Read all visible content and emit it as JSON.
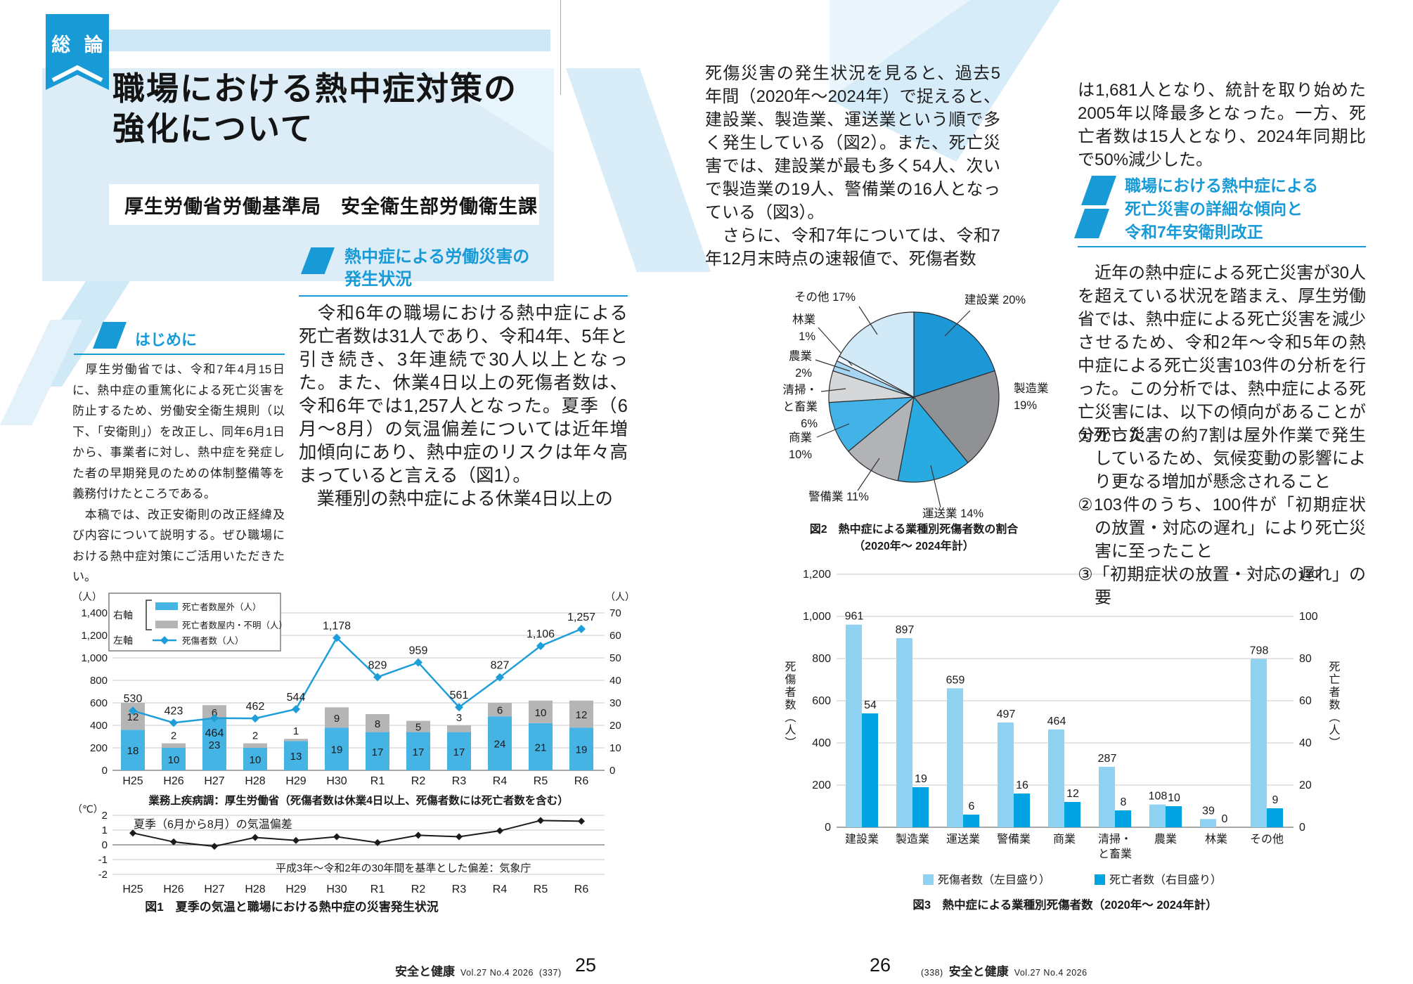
{
  "accent_color": "#189ad7",
  "icons": {
    "section_marker": "blue-slash-parallelogram-icon",
    "ribbon": "bookmark-ribbon"
  },
  "ribbon": {
    "label": "総 論"
  },
  "header": {
    "title_lines": [
      "職場における熱中症対策の",
      "強化について"
    ],
    "subtitle": "厚生労働省労働基準局　安全衛生部労働衛生課"
  },
  "left_col1": {
    "heading": "はじめに",
    "paragraphs": [
      "　厚生労働省では、令和7年4月15日に、熱中症の重篤化による死亡災害を防止するため、労働安全衛生規則（以下、「安衛則」）を改正し、同年6月1日から、事業者に対し、熱中症を発症した者の早期発見のための体制整備等を義務付けたところである。",
      "　本稿では、改正安衛則の改正経緯及び内容について説明する。ぜひ職場における熱中症対策にご活用いただきたい。"
    ]
  },
  "left_col2": {
    "heading_lines": [
      "熱中症による労働災害の",
      "発生状況"
    ],
    "paragraphs": [
      "　令和6年の職場における熱中症による死亡者数は31人であり、令和4年、5年と引き続き、3年連続で30人以上となった。また、休業4日以上の死傷者数は、令和6年では1,257人となった。夏季（6月〜8月）の気温偏差については近年増加傾向にあり、熱中症のリスクは年々高まっていると言える（図1）。",
      "　業種別の熱中症による休業4日以上の"
    ]
  },
  "right_col1": {
    "paragraphs": [
      "死傷災害の発生状況を見ると、過去5年間（2020年〜2024年）で捉えると、建設業、製造業、運送業という順で多く発生している（図2）。また、死亡災害では、建設業が最も多く54人、次いで製造業の19人、警備業の16人となっている（図3）。",
      "　さらに、令和7年については、令和7年12月末時点の速報値で、死傷者数"
    ]
  },
  "right_col2": {
    "lead_paragraphs": [
      "は1,681人となり、統計を取り始めた2005年以降最多となった。一方、死亡者数は15人となり、2024年同期比で50%減少した。"
    ],
    "heading_lines": [
      "職場における熱中症による",
      "死亡災害の詳細な傾向と",
      "令和7年安衛則改正"
    ],
    "paragraphs": [
      "　近年の熱中症による死亡災害が30人を超えている状況を踏まえ、厚生労働省では、熱中症による死亡災害を減少させるため、令和2年〜令和5年の熱中症による死亡災害103件の分析を行った。この分析では、熱中症による死亡災害には、以下の傾向があることが分かった。"
    ],
    "list_items": [
      "①死亡災害の約7割は屋外作業で発生しているため、気候変動の影響により更なる増加が懸念されること",
      "②103件のうち、100件が「初期症状の放置・対応の遅れ」により死亡災害に至ったこと",
      "③「初期症状の放置・対応の遅れ」の要"
    ]
  },
  "footer_left": {
    "journal": "安全と健康",
    "issue": "Vol.27 No.4 2026",
    "series_page": "(337)",
    "page_number": "25"
  },
  "footer_right": {
    "page_number": "26",
    "series_page": "(338)",
    "journal": "安全と健康",
    "issue": "Vol.27 No.4 2026"
  },
  "chart_data": [
    {
      "id": "figure1",
      "type": "bar+line",
      "categories": [
        "H25",
        "H26",
        "H27",
        "H28",
        "H29",
        "H30",
        "R1",
        "R2",
        "R3",
        "R4",
        "R5",
        "R6"
      ],
      "series": [
        {
          "name": "死亡者数屋外（人）",
          "type": "bar",
          "axis": "right",
          "color": "#45b4e4",
          "values": [
            18,
            10,
            23,
            10,
            13,
            19,
            17,
            17,
            17,
            24,
            21,
            19
          ]
        },
        {
          "name": "死亡者数屋内・不明（人）",
          "type": "bar",
          "axis": "right",
          "color": "#b5b5b5",
          "values": [
            12,
            2,
            6,
            2,
            1,
            9,
            8,
            5,
            3,
            6,
            10,
            12
          ]
        },
        {
          "name": "死傷者数（人）",
          "type": "line",
          "axis": "left",
          "color": "#1e9ed9",
          "values": [
            530,
            423,
            464,
            462,
            544,
            1178,
            829,
            959,
            561,
            827,
            1106,
            1257
          ]
        }
      ],
      "legend": {
        "right_axis_label": "右軸",
        "left_axis_label": "左軸"
      },
      "left_axis": {
        "unit": "（人）",
        "min": 0,
        "max": 1400,
        "step": 200
      },
      "right_axis": {
        "unit": "（人）",
        "min": 0,
        "max": 70,
        "step": 10
      },
      "source_note": "業務上疾病調：厚生労働省（死傷者数は休業4日以上、死傷者数には死亡者数を含む）",
      "temperature": {
        "unit": "（℃）",
        "min": -2,
        "max": 2,
        "step": 1,
        "label": "夏季（6月から8月）の気温偏差",
        "note": "平成3年〜令和2年の30年間を基準とした偏差：気象庁",
        "color": "#1a1a1a",
        "values": [
          0.8,
          0.2,
          -0.1,
          0.5,
          0.3,
          0.55,
          0.15,
          0.65,
          0.55,
          0.95,
          1.65,
          1.6
        ]
      },
      "caption": "図1　夏季の気温と職場における熱中症の災害発生状況"
    },
    {
      "id": "figure2",
      "type": "pie",
      "slices": [
        {
          "label": "建設業",
          "pct": 20,
          "color": "#1e97d7"
        },
        {
          "label": "製造業",
          "pct": 19,
          "color": "#8f9194"
        },
        {
          "label": "運送業",
          "pct": 14,
          "color": "#29aae1"
        },
        {
          "label": "警備業",
          "pct": 11,
          "color": "#b1b3b6"
        },
        {
          "label": "商業",
          "pct": 10,
          "color": "#43b2e6"
        },
        {
          "label": "清掃・と畜業",
          "pct": 6,
          "color": "#d5d7d9"
        },
        {
          "label": "農業",
          "pct": 2,
          "color": "#a5d5f2"
        },
        {
          "label": "林業",
          "pct": 1,
          "color": "#eef7fd"
        },
        {
          "label": "その他",
          "pct": 17,
          "color": "#d2e9f8"
        }
      ],
      "caption_lines": [
        "図2　熱中症による業種別死傷者数の割合",
        "（2020年〜 2024年計）"
      ]
    },
    {
      "id": "figure3",
      "type": "bar",
      "categories": [
        [
          "建設業"
        ],
        [
          "製造業"
        ],
        [
          "運送業"
        ],
        [
          "警備業"
        ],
        [
          "商業"
        ],
        [
          "清掃・",
          "と畜業"
        ],
        [
          "農業"
        ],
        [
          "林業"
        ],
        [
          "その他"
        ]
      ],
      "series": [
        {
          "name": "死傷者数（左目盛り）",
          "axis": "left",
          "color": "#8fd2f2",
          "values": [
            961,
            897,
            659,
            497,
            464,
            287,
            108,
            39,
            798
          ]
        },
        {
          "name": "死亡者数（右目盛り）",
          "axis": "right",
          "color": "#00a3e2",
          "values": [
            54,
            19,
            6,
            16,
            12,
            8,
            10,
            0,
            9
          ]
        }
      ],
      "left_axis": {
        "label": "死傷者数（人）",
        "min": 0,
        "max": 1200,
        "step": 200
      },
      "right_axis": {
        "label": "死亡者数（人）",
        "min": 0,
        "max": 120,
        "step": 20
      },
      "caption": "図3　熱中症による業種別死傷者数（2020年〜 2024年計）"
    }
  ]
}
